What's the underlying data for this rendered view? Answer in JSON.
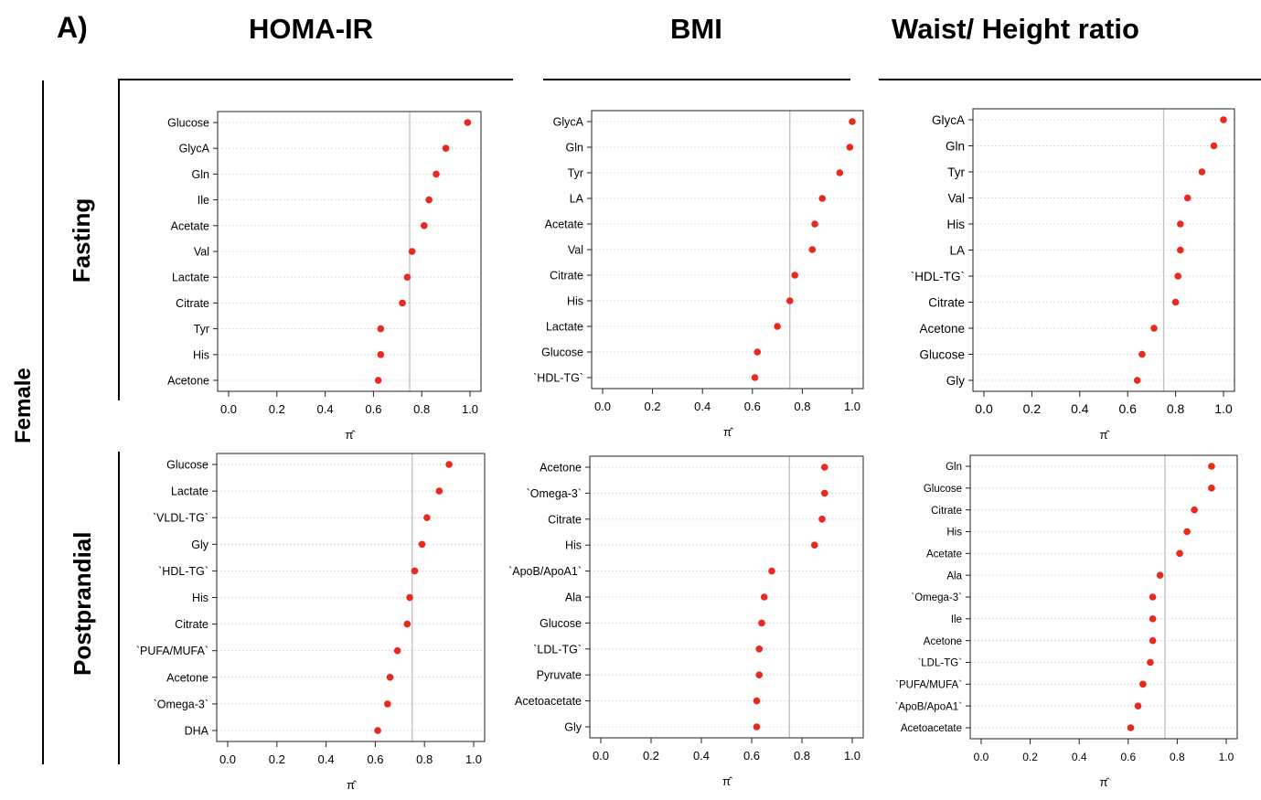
{
  "figure": {
    "panel_label": "A)",
    "columns": [
      "HOMA-IR",
      "BMI",
      "Waist/ Height ratio"
    ],
    "rows": [
      "Fasting",
      "Postprandial"
    ],
    "group_label": "Female",
    "x_symbol": "π̂"
  },
  "chart_data": [
    {
      "type": "scatter",
      "row": "Fasting",
      "column": "HOMA-IR",
      "categories": [
        "Glucose",
        "GlycA",
        "Gln",
        "Ile",
        "Acetate",
        "Val",
        "Lactate",
        "Citrate",
        "Tyr",
        "His",
        "Acetone"
      ],
      "values": [
        0.99,
        0.9,
        0.86,
        0.83,
        0.81,
        0.76,
        0.74,
        0.72,
        0.63,
        0.63,
        0.62
      ],
      "xlim": [
        0,
        1
      ],
      "xticks": [
        0.0,
        0.2,
        0.4,
        0.6,
        0.8,
        1.0
      ],
      "threshold": 0.75,
      "xlabel": "π̂",
      "grid": "horizontal dotted"
    },
    {
      "type": "scatter",
      "row": "Fasting",
      "column": "BMI",
      "categories": [
        "GlycA",
        "Gln",
        "Tyr",
        "LA",
        "Acetate",
        "Val",
        "Citrate",
        "His",
        "Lactate",
        "Glucose",
        "`HDL-TG`"
      ],
      "values": [
        1.0,
        0.99,
        0.95,
        0.88,
        0.85,
        0.84,
        0.77,
        0.75,
        0.7,
        0.62,
        0.61
      ],
      "xlim": [
        0,
        1
      ],
      "xticks": [
        0.0,
        0.2,
        0.4,
        0.6,
        0.8,
        1.0
      ],
      "threshold": 0.75,
      "xlabel": "π̂",
      "grid": "horizontal dotted"
    },
    {
      "type": "scatter",
      "row": "Fasting",
      "column": "Waist/ Height ratio",
      "categories": [
        "GlycA",
        "Gln",
        "Tyr",
        "Val",
        "His",
        "LA",
        "`HDL-TG`",
        "Citrate",
        "Acetone",
        "Glucose",
        "Gly"
      ],
      "values": [
        1.0,
        0.96,
        0.91,
        0.85,
        0.82,
        0.82,
        0.81,
        0.8,
        0.71,
        0.66,
        0.64
      ],
      "xlim": [
        0,
        1
      ],
      "xticks": [
        0.0,
        0.2,
        0.4,
        0.6,
        0.8,
        1.0
      ],
      "threshold": 0.75,
      "xlabel": "π̂",
      "grid": "horizontal dotted"
    },
    {
      "type": "scatter",
      "row": "Postprandial",
      "column": "HOMA-IR",
      "categories": [
        "Glucose",
        "Lactate",
        "`VLDL-TG`",
        "Gly",
        "`HDL-TG`",
        "His",
        "Citrate",
        "`PUFA/MUFA`",
        "Acetone",
        "`Omega-3`",
        "DHA"
      ],
      "values": [
        0.9,
        0.86,
        0.81,
        0.79,
        0.76,
        0.74,
        0.73,
        0.69,
        0.66,
        0.65,
        0.61
      ],
      "xlim": [
        0,
        1
      ],
      "xticks": [
        0.0,
        0.2,
        0.4,
        0.6,
        0.8,
        1.0
      ],
      "threshold": 0.75,
      "xlabel": "π̂",
      "grid": "horizontal dotted"
    },
    {
      "type": "scatter",
      "row": "Postprandial",
      "column": "BMI",
      "categories": [
        "Acetone",
        "`Omega-3`",
        "Citrate",
        "His",
        "`ApoB/ApoA1`",
        "Ala",
        "Glucose",
        "`LDL-TG`",
        "Pyruvate",
        "Acetoacetate",
        "Gly"
      ],
      "values": [
        0.89,
        0.89,
        0.88,
        0.85,
        0.68,
        0.65,
        0.64,
        0.63,
        0.63,
        0.62,
        0.62
      ],
      "xlim": [
        0,
        1
      ],
      "xticks": [
        0.0,
        0.2,
        0.4,
        0.6,
        0.8,
        1.0
      ],
      "threshold": 0.75,
      "xlabel": "π̂",
      "grid": "horizontal dotted"
    },
    {
      "type": "scatter",
      "row": "Postprandial",
      "column": "Waist/ Height ratio",
      "categories": [
        "Gln",
        "Glucose",
        "Citrate",
        "His",
        "Acetate",
        "Ala",
        "`Omega-3`",
        "Ile",
        "Acetone",
        "`LDL-TG`",
        "`PUFA/MUFA`",
        "`ApoB/ApoA1`",
        "Acetoacetate"
      ],
      "values": [
        0.94,
        0.94,
        0.87,
        0.84,
        0.81,
        0.73,
        0.7,
        0.7,
        0.7,
        0.69,
        0.66,
        0.64,
        0.61
      ],
      "xlim": [
        0,
        1
      ],
      "xticks": [
        0.0,
        0.2,
        0.4,
        0.6,
        0.8,
        1.0
      ],
      "threshold": 0.75,
      "xlabel": "π̂",
      "grid": "horizontal dotted"
    }
  ],
  "style": {
    "point_color": "#e8291c",
    "threshold_color": "#bdbdbd",
    "grid_color": "#c8c8c8"
  }
}
